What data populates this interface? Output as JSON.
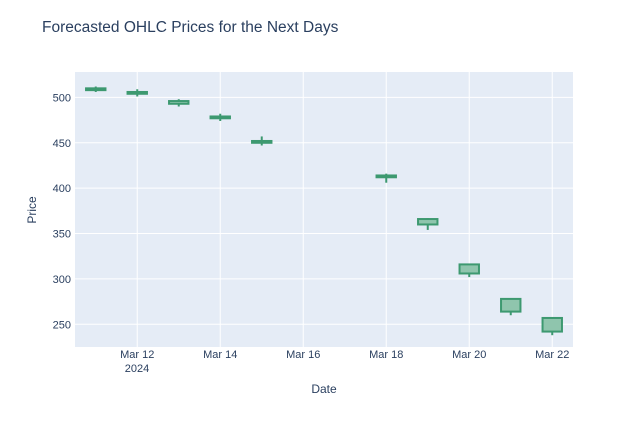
{
  "chart_data": {
    "type": "candlestick",
    "title": "Forecasted OHLC Prices for the Next Days",
    "xlabel": "Date",
    "ylabel": "Price",
    "year_label": "2024",
    "x_ticks": [
      "2024-03-12",
      "2024-03-14",
      "2024-03-16",
      "2024-03-18",
      "2024-03-20",
      "2024-03-22"
    ],
    "x_tick_labels": [
      "Mar 12",
      "Mar 14",
      "Mar 16",
      "Mar 18",
      "Mar 20",
      "Mar 22"
    ],
    "y_ticks": [
      250,
      300,
      350,
      400,
      450,
      500
    ],
    "ylim": [
      225,
      528
    ],
    "xlim": [
      "2024-03-10 12:00",
      "2024-03-22 12:00"
    ],
    "grid": true,
    "colors": {
      "increasing": "#3d9970",
      "fill": "#8fc5ad",
      "plot_bg": "#e5ecf6",
      "grid": "#ffffff",
      "text": "#2a3f5f"
    },
    "candles": [
      {
        "date": "2024-03-11",
        "open": 508,
        "high": 512,
        "low": 506,
        "close": 510
      },
      {
        "date": "2024-03-12",
        "open": 504,
        "high": 509,
        "low": 501,
        "close": 506
      },
      {
        "date": "2024-03-13",
        "open": 493,
        "high": 498,
        "low": 490,
        "close": 496
      },
      {
        "date": "2024-03-14",
        "open": 477,
        "high": 482,
        "low": 474,
        "close": 479
      },
      {
        "date": "2024-03-15",
        "open": 450,
        "high": 457,
        "low": 447,
        "close": 452
      },
      {
        "date": "2024-03-18",
        "open": 412,
        "high": 416,
        "low": 406,
        "close": 414
      },
      {
        "date": "2024-03-19",
        "open": 360,
        "high": 367,
        "low": 354,
        "close": 366
      },
      {
        "date": "2024-03-20",
        "open": 306,
        "high": 316,
        "low": 302,
        "close": 316
      },
      {
        "date": "2024-03-21",
        "open": 264,
        "high": 278,
        "low": 260,
        "close": 278
      },
      {
        "date": "2024-03-22",
        "open": 242,
        "high": 257,
        "low": 238,
        "close": 257
      }
    ]
  }
}
